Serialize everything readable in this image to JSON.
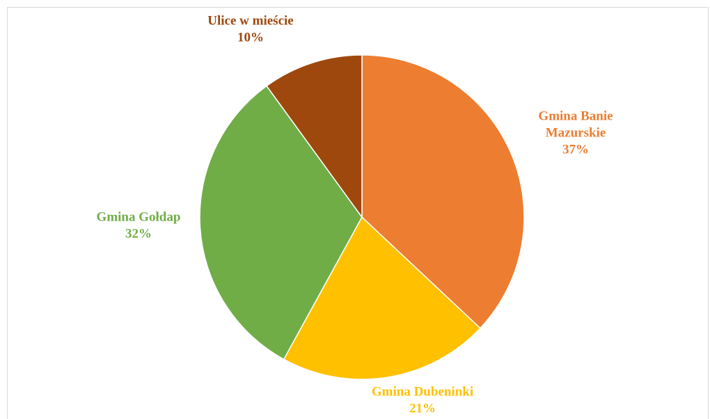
{
  "chart_data": {
    "type": "pie",
    "title": "",
    "slices": [
      {
        "label_lines": [
          "Gmina Banie",
          "Mazurskie"
        ],
        "pct_label": "37%",
        "value": 37,
        "color": "#ED7D31"
      },
      {
        "label_lines": [
          "Gmina Dubeninki"
        ],
        "pct_label": "21%",
        "value": 21,
        "color": "#FFC000"
      },
      {
        "label_lines": [
          "Gmina Gołdap"
        ],
        "pct_label": "32%",
        "value": 32,
        "color": "#70AD47"
      },
      {
        "label_lines": [
          "Ulice w mieście"
        ],
        "pct_label": "10%",
        "value": 10,
        "color": "#9E480E"
      }
    ],
    "start_angle_deg": 0,
    "direction": "clockwise",
    "legend": "none"
  }
}
